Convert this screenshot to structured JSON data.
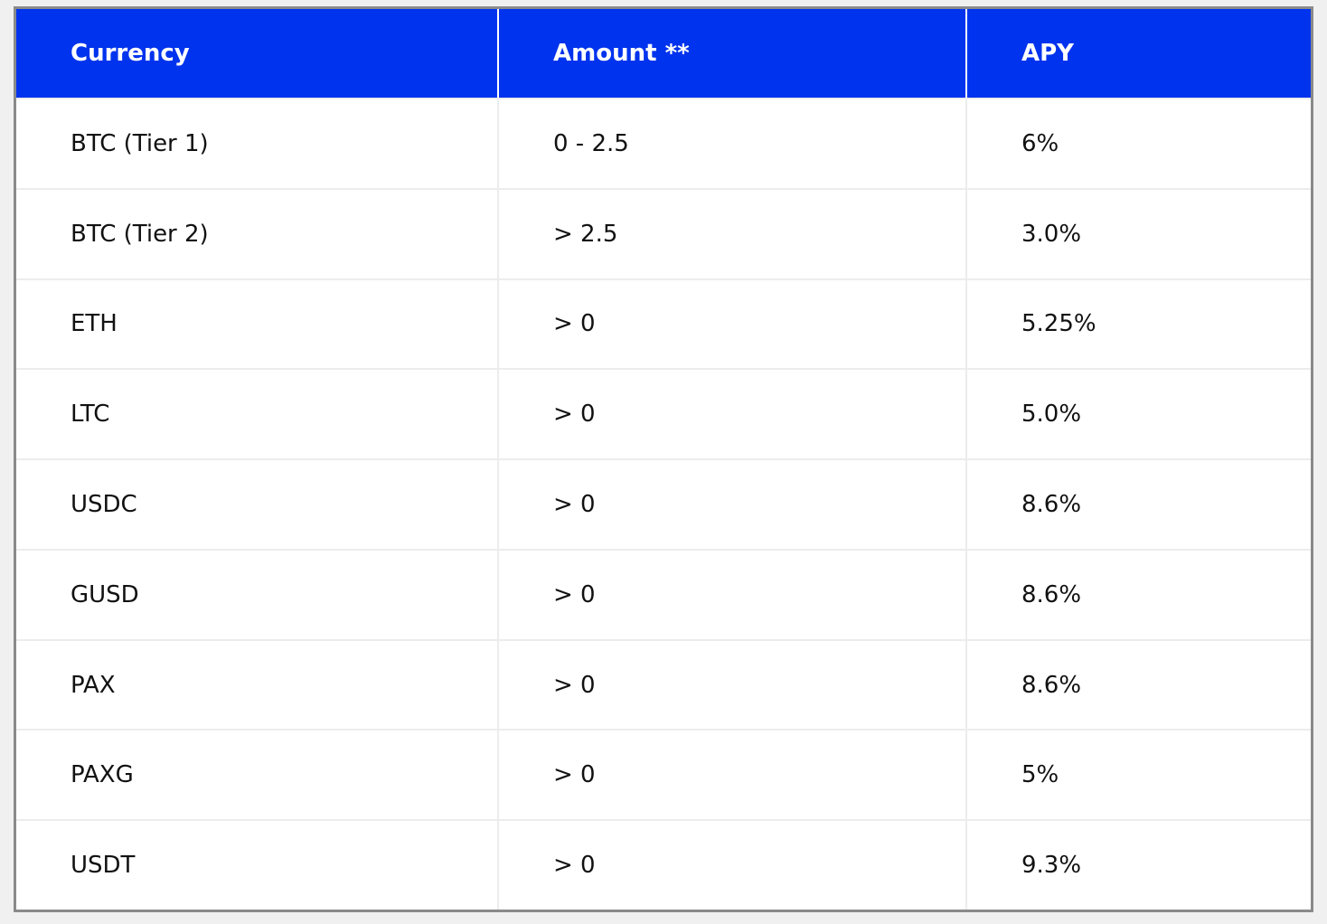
{
  "table": {
    "header": [
      "Currency",
      "Amount **",
      "APY"
    ],
    "rows": [
      [
        "BTC (Tier 1)",
        "0 - 2.5",
        "6%"
      ],
      [
        "BTC (Tier 2)",
        "> 2.5",
        "3.0%"
      ],
      [
        "ETH",
        "> 0",
        "5.25%"
      ],
      [
        "LTC",
        "> 0",
        "5.0%"
      ],
      [
        "USDC",
        "> 0",
        "8.6%"
      ],
      [
        "GUSD",
        "> 0",
        "8.6%"
      ],
      [
        "PAX",
        "> 0",
        "8.6%"
      ],
      [
        "PAXG",
        "> 0",
        "5%"
      ],
      [
        "USDT",
        "> 0",
        "9.3%"
      ]
    ]
  }
}
